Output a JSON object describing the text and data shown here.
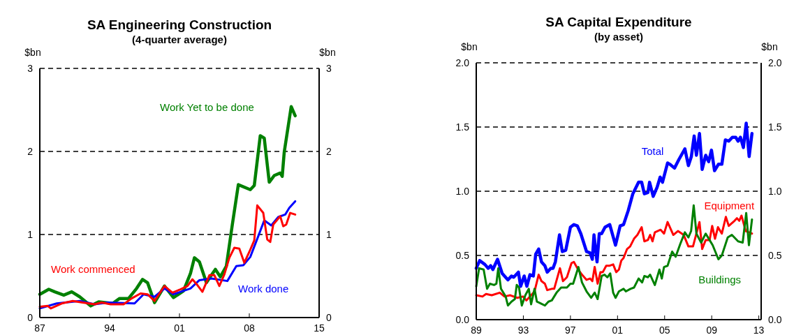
{
  "chart_data": [
    {
      "type": "line",
      "title": "SA Engineering Construction",
      "subtitle": "(4-quarter average)",
      "ylabel": "$bn",
      "y2label": "$bn",
      "xlim": [
        1987,
        2015
      ],
      "xticks": [
        {
          "value": 1987,
          "label": "87"
        },
        {
          "value": 1994,
          "label": "94"
        },
        {
          "value": 2001,
          "label": "01"
        },
        {
          "value": 2008,
          "label": "08"
        },
        {
          "value": 2015,
          "label": "15"
        }
      ],
      "ylim": [
        0,
        3
      ],
      "yticks": [
        0,
        1,
        2,
        3
      ],
      "y2lim": [
        0,
        3
      ],
      "y2ticks": [
        0,
        1,
        2,
        3
      ],
      "grid": "y",
      "legend": false,
      "line_style": "solid",
      "marker": "none",
      "series": [
        {
          "name": "Work Yet to be done",
          "color": "#008000",
          "x": [
            1987.0,
            1987.9,
            1988.5,
            1989.4,
            1990.2,
            1991.0,
            1992.1,
            1992.9,
            1994.3,
            1995.0,
            1995.9,
            1996.7,
            1997.3,
            1997.8,
            1998.5,
            1999.5,
            2000.4,
            2001.4,
            2002.1,
            2002.5,
            2003.0,
            2003.7,
            2004.2,
            2004.6,
            2005.1,
            2005.7,
            2006.3,
            2006.9,
            2008.1,
            2008.5,
            2009.1,
            2009.5,
            2010.0,
            2010.5,
            2011.1,
            2011.3,
            2011.5,
            2012.2,
            2012.6
          ],
          "values": [
            0.28,
            0.34,
            0.31,
            0.27,
            0.31,
            0.25,
            0.14,
            0.19,
            0.17,
            0.23,
            0.23,
            0.35,
            0.46,
            0.42,
            0.18,
            0.38,
            0.24,
            0.32,
            0.53,
            0.72,
            0.67,
            0.42,
            0.51,
            0.58,
            0.49,
            0.62,
            1.12,
            1.6,
            1.54,
            1.59,
            2.19,
            2.16,
            1.63,
            1.71,
            1.74,
            1.7,
            1.99,
            2.54,
            2.43
          ]
        },
        {
          "name": "Work done",
          "color": "#0000ff",
          "x": [
            1987.0,
            1988.7,
            1991.0,
            1992.5,
            1993.8,
            1996.5,
            1997.4,
            1998.5,
            1999.5,
            2000.4,
            2002.1,
            2003.0,
            2004.2,
            2005.8,
            2006.7,
            2007.4,
            2008.1,
            2008.9,
            2009.5,
            2010.2,
            2010.9,
            2011.6,
            2012.0,
            2012.6
          ],
          "values": [
            0.11,
            0.17,
            0.2,
            0.16,
            0.18,
            0.17,
            0.28,
            0.25,
            0.35,
            0.28,
            0.35,
            0.45,
            0.47,
            0.44,
            0.62,
            0.63,
            0.73,
            0.98,
            1.17,
            1.11,
            1.21,
            1.24,
            1.32,
            1.4
          ]
        },
        {
          "name": "Work commenced",
          "color": "#ff0000",
          "x": [
            1987.0,
            1987.8,
            1988.1,
            1989.2,
            1990.3,
            1991.3,
            1992.5,
            1993.2,
            1994.1,
            1995.4,
            1996.2,
            1997.1,
            1997.8,
            1998.5,
            1999.5,
            2000.3,
            2001.1,
            2001.8,
            2002.3,
            2002.8,
            2003.3,
            2004.0,
            2004.5,
            2005.0,
            2005.5,
            2006.0,
            2006.5,
            2007.0,
            2007.5,
            2008.0,
            2008.5,
            2008.8,
            2009.4,
            2009.8,
            2010.1,
            2010.4,
            2011.1,
            2011.4,
            2011.7,
            2012.1,
            2012.6
          ],
          "values": [
            0.13,
            0.14,
            0.11,
            0.17,
            0.2,
            0.18,
            0.16,
            0.18,
            0.16,
            0.16,
            0.23,
            0.29,
            0.28,
            0.2,
            0.38,
            0.3,
            0.34,
            0.38,
            0.46,
            0.39,
            0.31,
            0.51,
            0.51,
            0.38,
            0.52,
            0.72,
            0.84,
            0.83,
            0.66,
            0.79,
            0.93,
            1.35,
            1.26,
            0.94,
            0.91,
            1.12,
            1.22,
            1.1,
            1.12,
            1.26,
            1.24
          ]
        }
      ]
    },
    {
      "type": "line",
      "title": "SA Capital Expenditure",
      "subtitle": "(by asset)",
      "ylabel": "$bn",
      "y2label": "$bn",
      "xlim": [
        1989,
        2013.2
      ],
      "xticks": [
        {
          "value": 1989,
          "label": "89"
        },
        {
          "value": 1993,
          "label": "93"
        },
        {
          "value": 1997,
          "label": "97"
        },
        {
          "value": 2001,
          "label": "01"
        },
        {
          "value": 2005,
          "label": "05"
        },
        {
          "value": 2009,
          "label": "09"
        },
        {
          "value": 2013,
          "label": "13"
        }
      ],
      "ylim": [
        0,
        2
      ],
      "yticks": [
        {
          "value": 0,
          "label": "0.0"
        },
        0.5,
        {
          "value": 1,
          "label": "1.0"
        },
        1.5,
        {
          "value": 2,
          "label": "2.0"
        }
      ],
      "y2lim": [
        0,
        2
      ],
      "y2ticks": [
        {
          "value": 0,
          "label": "0.0"
        },
        0.5,
        {
          "value": 1,
          "label": "1.0"
        },
        1.5,
        {
          "value": 2,
          "label": "2.0"
        }
      ],
      "grid": "y",
      "legend": false,
      "line_style": "solid",
      "marker": "none",
      "series": [
        {
          "name": "Total",
          "color": "#0000ff",
          "x": [
            1989.0,
            1989.29,
            1989.73,
            1990.02,
            1990.22,
            1990.41,
            1990.81,
            1991.2,
            1991.69,
            1991.99,
            1992.18,
            1992.58,
            1992.77,
            1993.07,
            1993.3,
            1993.56,
            1993.85,
            1994.05,
            1994.3,
            1994.54,
            1994.83,
            1995.03,
            1995.33,
            1995.52,
            1995.72,
            1996.07,
            1996.31,
            1996.6,
            1997.0,
            1997.29,
            1997.59,
            1997.88,
            1998.37,
            1998.67,
            1998.86,
            1999.0,
            1999.26,
            1999.45,
            1999.65,
            1999.94,
            2000.34,
            2000.83,
            2001.22,
            2001.51,
            2001.91,
            2002.3,
            2002.79,
            2003.05,
            2003.28,
            2003.58,
            2003.72,
            2004.03,
            2004.36,
            2004.62,
            2004.82,
            2005.25,
            2005.44,
            2005.84,
            2006.23,
            2006.72,
            2007.02,
            2007.27,
            2007.51,
            2007.7,
            2007.96,
            2008.19,
            2008.49,
            2008.74,
            2008.98,
            2009.24,
            2009.57,
            2009.86,
            2010.16,
            2010.45,
            2010.75,
            2011.04,
            2011.24,
            2011.44,
            2011.69,
            2011.93,
            2012.18,
            2012.42
          ],
          "values": [
            0.4,
            0.46,
            0.43,
            0.4,
            0.42,
            0.39,
            0.47,
            0.36,
            0.31,
            0.34,
            0.33,
            0.37,
            0.26,
            0.34,
            0.26,
            0.35,
            0.34,
            0.51,
            0.55,
            0.45,
            0.42,
            0.37,
            0.4,
            0.4,
            0.45,
            0.66,
            0.53,
            0.54,
            0.72,
            0.74,
            0.73,
            0.67,
            0.53,
            0.52,
            0.47,
            0.66,
            0.45,
            0.67,
            0.67,
            0.72,
            0.74,
            0.58,
            0.73,
            0.74,
            0.85,
            0.98,
            1.07,
            1.07,
            0.98,
            0.99,
            1.07,
            0.96,
            1.03,
            1.11,
            1.07,
            1.22,
            1.21,
            1.18,
            1.25,
            1.33,
            1.2,
            1.27,
            1.43,
            1.28,
            1.45,
            1.17,
            1.28,
            1.23,
            1.32,
            1.16,
            1.21,
            1.21,
            1.4,
            1.39,
            1.42,
            1.42,
            1.39,
            1.42,
            1.34,
            1.53,
            1.27,
            1.45
          ]
        },
        {
          "name": "Equipment",
          "color": "#ff0000",
          "x": [
            1989.0,
            1989.53,
            1989.83,
            1990.32,
            1991.0,
            1991.4,
            1991.89,
            1992.48,
            1992.97,
            1993.26,
            1993.66,
            1993.95,
            1994.3,
            1994.54,
            1994.83,
            1995.03,
            1995.42,
            1995.62,
            1996.11,
            1996.37,
            1996.7,
            1997.09,
            1997.29,
            1997.59,
            1997.98,
            1998.37,
            1998.67,
            1998.86,
            1999.06,
            1999.31,
            1999.55,
            1999.75,
            2000.04,
            2000.34,
            2000.63,
            2000.89,
            2001.12,
            2001.32,
            2001.51,
            2001.81,
            2002.07,
            2002.4,
            2002.69,
            2003.05,
            2003.28,
            2003.58,
            2003.77,
            2003.97,
            2004.17,
            2004.66,
            2004.95,
            2005.25,
            2005.74,
            2006.13,
            2006.62,
            2007.02,
            2007.41,
            2007.96,
            2008.19,
            2008.49,
            2008.82,
            2009.04,
            2009.28,
            2009.53,
            2009.86,
            2010.2,
            2010.45,
            2010.94,
            2011.14,
            2011.34,
            2011.53,
            2011.89,
            2012.42
          ],
          "values": [
            0.19,
            0.18,
            0.2,
            0.19,
            0.21,
            0.18,
            0.19,
            0.17,
            0.18,
            0.15,
            0.19,
            0.22,
            0.35,
            0.3,
            0.28,
            0.23,
            0.24,
            0.24,
            0.4,
            0.3,
            0.33,
            0.44,
            0.45,
            0.4,
            0.35,
            0.31,
            0.32,
            0.3,
            0.41,
            0.28,
            0.37,
            0.37,
            0.42,
            0.42,
            0.43,
            0.37,
            0.39,
            0.46,
            0.48,
            0.55,
            0.57,
            0.63,
            0.66,
            0.72,
            0.61,
            0.62,
            0.66,
            0.61,
            0.68,
            0.7,
            0.67,
            0.76,
            0.66,
            0.69,
            0.66,
            0.57,
            0.57,
            0.76,
            0.55,
            0.62,
            0.62,
            0.73,
            0.63,
            0.72,
            0.67,
            0.8,
            0.73,
            0.77,
            0.79,
            0.77,
            0.81,
            0.69,
            0.67
          ]
        },
        {
          "name": "Buildings",
          "color": "#008000",
          "x": [
            1989.0,
            1989.24,
            1989.63,
            1989.92,
            1990.16,
            1990.51,
            1990.71,
            1990.87,
            1991.1,
            1991.5,
            1991.69,
            1991.99,
            1992.28,
            1992.44,
            1992.63,
            1992.87,
            1993.17,
            1993.46,
            1993.66,
            1993.95,
            1994.15,
            1994.4,
            1994.83,
            1995.13,
            1995.42,
            1995.82,
            1996.21,
            1996.7,
            1997.0,
            1997.23,
            1997.68,
            1997.98,
            1998.37,
            1998.76,
            1999.06,
            1999.31,
            1999.65,
            1999.9,
            2000.14,
            2000.38,
            2000.63,
            2000.83,
            2001.12,
            2001.51,
            2001.71,
            2002.1,
            2002.4,
            2002.79,
            2003.09,
            2003.28,
            2003.58,
            2003.77,
            2004.17,
            2004.56,
            2004.76,
            2004.95,
            2005.25,
            2005.64,
            2005.94,
            2006.33,
            2006.72,
            2007.02,
            2007.25,
            2007.47,
            2007.7,
            2008.1,
            2008.49,
            2009.08,
            2009.57,
            2009.86,
            2010.36,
            2010.71,
            2011.24,
            2011.63,
            2011.93,
            2012.16,
            2012.42
          ],
          "values": [
            0.26,
            0.4,
            0.39,
            0.24,
            0.28,
            0.27,
            0.28,
            0.4,
            0.24,
            0.18,
            0.11,
            0.14,
            0.16,
            0.27,
            0.25,
            0.11,
            0.19,
            0.24,
            0.12,
            0.24,
            0.14,
            0.13,
            0.11,
            0.14,
            0.15,
            0.21,
            0.25,
            0.25,
            0.28,
            0.28,
            0.41,
            0.29,
            0.22,
            0.17,
            0.21,
            0.16,
            0.34,
            0.35,
            0.33,
            0.36,
            0.21,
            0.17,
            0.22,
            0.24,
            0.22,
            0.24,
            0.25,
            0.32,
            0.29,
            0.34,
            0.33,
            0.35,
            0.27,
            0.39,
            0.32,
            0.41,
            0.42,
            0.53,
            0.49,
            0.59,
            0.68,
            0.64,
            0.69,
            0.89,
            0.67,
            0.6,
            0.67,
            0.58,
            0.47,
            0.5,
            0.64,
            0.66,
            0.61,
            0.6,
            0.83,
            0.58,
            0.78
          ]
        }
      ]
    }
  ]
}
